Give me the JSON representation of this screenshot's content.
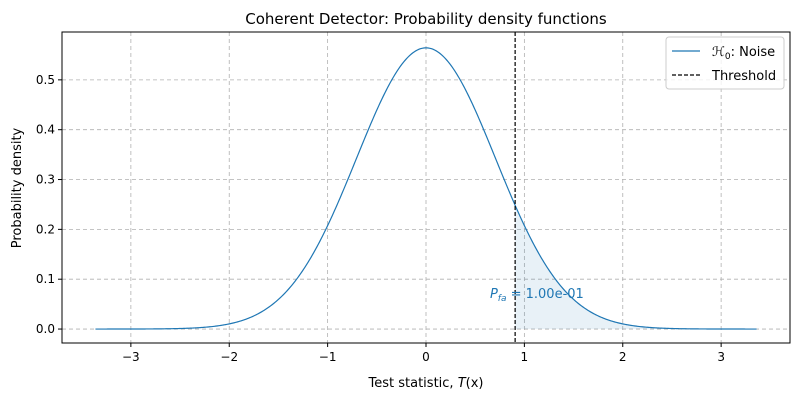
{
  "chart_data": {
    "type": "line",
    "title": "Coherent Detector: Probability density functions",
    "xlabel": "Test statistic, T(x)",
    "xlabel_parts": {
      "text": "Test statistic, ",
      "italic": "T",
      "rest": "(x)"
    },
    "ylabel": "Probability density",
    "xlim": [
      -3.7,
      3.7
    ],
    "ylim": [
      -0.028,
      0.596
    ],
    "xticks": [
      -3,
      -2,
      -1,
      0,
      1,
      2,
      3
    ],
    "xtick_labels": [
      "−3",
      "−2",
      "−1",
      "0",
      "1",
      "2",
      "3"
    ],
    "yticks": [
      0.0,
      0.1,
      0.2,
      0.3,
      0.4,
      0.5
    ],
    "ytick_labels": [
      "0.0",
      "0.1",
      "0.2",
      "0.3",
      "0.4",
      "0.5"
    ],
    "grid": true,
    "legend_position": "top-right",
    "series": [
      {
        "name": "H0: Noise",
        "name_parts": {
          "main": "ℋ",
          "sub": "0",
          "rest": ": Noise"
        },
        "distribution": "gaussian",
        "mean": 0,
        "variance": 0.5,
        "x_range": [
          -3.36,
          3.36
        ],
        "peak": 0.564,
        "color": "#1f77b4"
      }
    ],
    "threshold": {
      "name": "Threshold",
      "x": 0.906,
      "color": "#000000"
    },
    "shaded_region": {
      "from": 0.906,
      "to": 3.36,
      "color": "#1f77b4",
      "opacity": 0.1
    },
    "annotation": {
      "text": "P_fa = 1.00e-01",
      "main": "P",
      "sub": "fa",
      "rest": " = 1.00e-01",
      "x": 0.65,
      "y": 0.07,
      "color": "#1f77b4"
    }
  }
}
